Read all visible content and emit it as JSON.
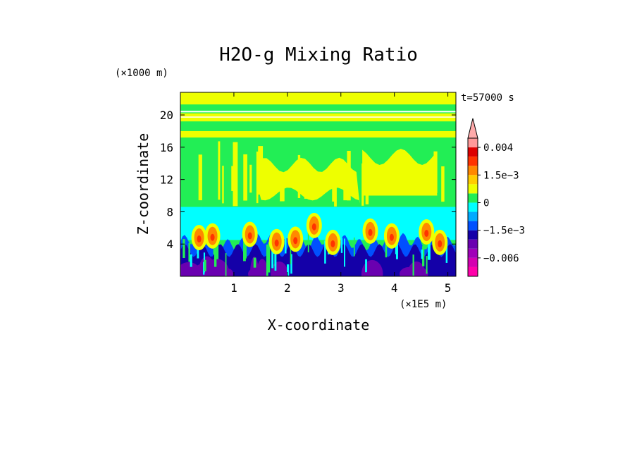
{
  "chart_data": {
    "type": "heatmap",
    "title": "H2O-g Mixing Ratio",
    "xlabel": "X-coordinate",
    "ylabel": "Z-coordinate",
    "x_unit_label": "(×1E5 m)",
    "y_unit_label": "(×1000 m)",
    "time_label": "t=57000 s",
    "xlim": [
      0,
      5.15
    ],
    "ylim": [
      0,
      22.8
    ],
    "x_ticks": [
      1,
      2,
      3,
      4,
      5
    ],
    "y_ticks": [
      4,
      8,
      12,
      16,
      20
    ],
    "grid": false,
    "colorbar": {
      "levels": [
        {
          "lo": -0.0099,
          "hi": -0.008,
          "color": "#ff00aa"
        },
        {
          "lo": -0.008,
          "hi": -0.006,
          "color": "#d400b0"
        },
        {
          "lo": -0.006,
          "hi": -0.004,
          "color": "#a000b8"
        },
        {
          "lo": -0.004,
          "hi": -0.002,
          "color": "#6a00b0"
        },
        {
          "lo": -0.002,
          "hi": -0.0015,
          "color": "#1400a8"
        },
        {
          "lo": -0.0015,
          "hi": -0.001,
          "color": "#0050ff"
        },
        {
          "lo": -0.001,
          "hi": -0.0005,
          "color": "#00aaff"
        },
        {
          "lo": -0.0005,
          "hi": 0,
          "color": "#00ffff"
        },
        {
          "lo": 0,
          "hi": 0.0005,
          "color": "#22ee55"
        },
        {
          "lo": 0.0005,
          "hi": 0.001,
          "color": "#eeff00"
        },
        {
          "lo": 0.001,
          "hi": 0.0015,
          "color": "#ffcc00"
        },
        {
          "lo": 0.0015,
          "hi": 0.002,
          "color": "#ff8800"
        },
        {
          "lo": 0.002,
          "hi": 0.003,
          "color": "#ff3300"
        },
        {
          "lo": 0.003,
          "hi": 0.004,
          "color": "#dd0000"
        },
        {
          "lo": 0.004,
          "hi": 0.005,
          "color": "#ff9999"
        },
        {
          "lo": 0.005,
          "hi": null,
          "color": "#ffaaaa"
        }
      ],
      "tick_labels": [
        {
          "value": 0.004,
          "label": "0.004"
        },
        {
          "value": 0.0015,
          "label": "1.5e−3"
        },
        {
          "value": 0,
          "label": "0"
        },
        {
          "value": -0.0015,
          "label": "−1.5e−3"
        },
        {
          "value": -0.006,
          "label": "−0.006"
        }
      ]
    },
    "field_layers": [
      {
        "z_range": [
          0,
          1.2
        ],
        "level_index": 3,
        "note": "dark purple base"
      },
      {
        "z_range": [
          0.8,
          5
        ],
        "level_index": 4,
        "note": "deep blue"
      },
      {
        "z_range": [
          4.5,
          8.6
        ],
        "level_index": 7,
        "note": "cyan"
      },
      {
        "z_range": [
          8.6,
          22.8
        ],
        "level_index": 8,
        "note": "green"
      },
      {
        "z_range": [
          8.6,
          15
        ],
        "level_index": 9,
        "note": "yellow plume area"
      },
      {
        "z_range": [
          19,
          22.8
        ],
        "level_index": 9,
        "note": "yellow upper bands"
      }
    ],
    "plumes": [
      {
        "x": 0.35,
        "z": 4.8,
        "level_index": 11
      },
      {
        "x": 0.6,
        "z": 5.0,
        "level_index": 11
      },
      {
        "x": 1.3,
        "z": 5.2,
        "level_index": 11
      },
      {
        "x": 1.8,
        "z": 4.3,
        "level_index": 11
      },
      {
        "x": 2.15,
        "z": 4.6,
        "level_index": 11
      },
      {
        "x": 2.5,
        "z": 6.3,
        "level_index": 11
      },
      {
        "x": 2.85,
        "z": 4.2,
        "level_index": 11
      },
      {
        "x": 3.55,
        "z": 5.6,
        "level_index": 11
      },
      {
        "x": 3.95,
        "z": 5.0,
        "level_index": 11
      },
      {
        "x": 4.6,
        "z": 5.5,
        "level_index": 11
      },
      {
        "x": 4.85,
        "z": 4.2,
        "level_index": 11
      }
    ]
  }
}
